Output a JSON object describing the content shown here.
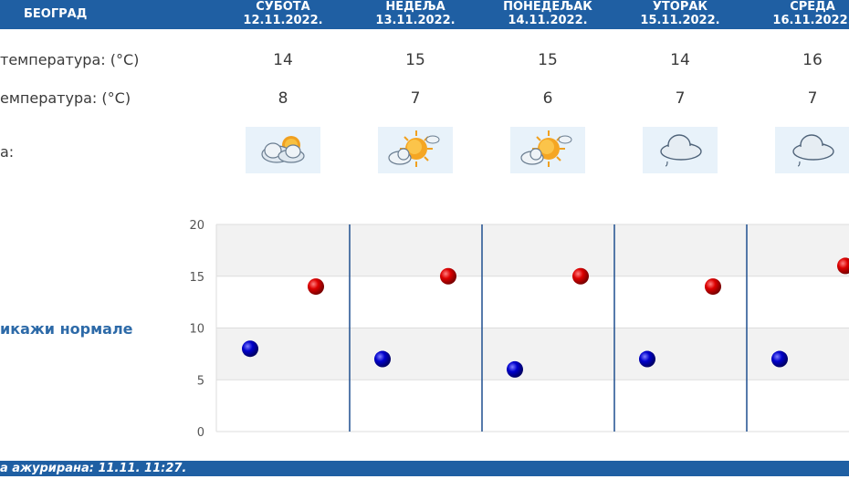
{
  "header": {
    "city": "БЕОГРАД",
    "days": [
      {
        "name": "СУБОТА",
        "date": "12.11.2022."
      },
      {
        "name": "НЕДЕЉА",
        "date": "13.11.2022."
      },
      {
        "name": "ПОНЕДЕЉАК",
        "date": "14.11.2022."
      },
      {
        "name": "УТОРАК",
        "date": "15.11.2022."
      },
      {
        "name": "СРЕДА",
        "date": "16.11.2022."
      }
    ]
  },
  "rows": {
    "max_label": "температура: (°C)",
    "min_label": "емпература: (°C)",
    "weather_label": "а:",
    "max": [
      "14",
      "15",
      "15",
      "14",
      "16"
    ],
    "min": [
      "8",
      "7",
      "6",
      "7",
      "7"
    ],
    "weather_icons": [
      "partly-cloudy-icon",
      "sun-cloud-icon",
      "sun-cloud-icon",
      "cloud-drizzle-icon",
      "cloud-drizzle-icon"
    ]
  },
  "normals_link": "икажи нормале",
  "footer": {
    "updated": "а ажурирана:  11.11. 11:27."
  },
  "colors": {
    "header": "#1f5fa3",
    "max_dot": "#cc0000",
    "min_dot": "#0000bb",
    "grid_band": "#f2f2f2",
    "divider": "#1f4f8f"
  },
  "chart_data": {
    "type": "scatter",
    "categories": [
      "СУБОТА",
      "НЕДЕЉА",
      "ПОНЕДЕЉАК",
      "УТОРАК",
      "СРЕДА"
    ],
    "series": [
      {
        "values": [
          14,
          15,
          15,
          14,
          16
        ],
        "color": "#cc0000"
      },
      {
        "values": [
          8,
          7,
          6,
          7,
          7
        ],
        "color": "#0000bb"
      }
    ],
    "yticks": [
      "0",
      "5",
      "10",
      "15",
      "20"
    ],
    "ylim": [
      0,
      20
    ],
    "grid": true
  }
}
